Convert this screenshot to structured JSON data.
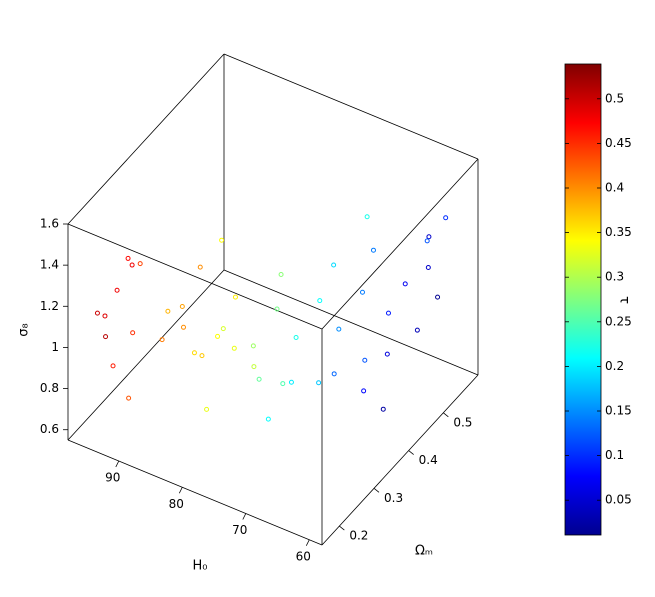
{
  "chart_data": {
    "type": "scatter3d",
    "colormap": "jet",
    "x_label": "H₀",
    "y_label": "Ωₘ",
    "z_label": "σ₈",
    "colorbar_label": "τ",
    "xlim": [
      58,
      98
    ],
    "xticks": [
      60,
      70,
      80,
      90
    ],
    "ylim": [
      0.15,
      0.6
    ],
    "yticks": [
      0.2,
      0.3,
      0.4,
      0.5
    ],
    "zlim": [
      0.55,
      1.6
    ],
    "zticks": [
      0.6,
      0.8,
      1,
      1.2,
      1.4,
      1.6
    ],
    "clim": [
      0.011,
      0.539
    ],
    "cticks": [
      0.05,
      0.1,
      0.15,
      0.2,
      0.25,
      0.3,
      0.35,
      0.4,
      0.45,
      0.5
    ],
    "x": [
      95,
      93,
      96,
      92,
      94,
      90,
      97,
      91,
      89,
      95,
      87,
      86,
      88,
      85,
      84,
      87,
      83,
      81,
      80,
      79,
      82,
      78,
      80,
      77,
      76,
      75,
      77,
      74,
      73,
      72,
      71,
      72,
      70,
      73,
      69,
      68,
      67,
      69,
      66,
      65,
      64,
      63,
      62,
      64,
      61,
      63,
      62,
      60,
      62,
      82,
      70,
      66
    ],
    "y": [
      0.18,
      0.2,
      0.22,
      0.17,
      0.25,
      0.19,
      0.24,
      0.23,
      0.16,
      0.28,
      0.22,
      0.26,
      0.3,
      0.2,
      0.28,
      0.33,
      0.24,
      0.27,
      0.3,
      0.25,
      0.34,
      0.32,
      0.22,
      0.3,
      0.35,
      0.28,
      0.38,
      0.33,
      0.35,
      0.4,
      0.3,
      0.44,
      0.36,
      0.27,
      0.4,
      0.45,
      0.35,
      0.5,
      0.42,
      0.47,
      0.5,
      0.43,
      0.53,
      0.38,
      0.48,
      0.55,
      0.4,
      0.52,
      0.58,
      0.3,
      0.5,
      0.6
    ],
    "z": [
      1.15,
      1.25,
      1.05,
      0.95,
      1.3,
      1.1,
      0.9,
      1.35,
      0.85,
      1.2,
      1.05,
      1.15,
      0.95,
      1.25,
      0.9,
      1.2,
      1.0,
      1.05,
      0.95,
      1.15,
      1.1,
      0.85,
      0.8,
      1.0,
      1.1,
      0.9,
      1.2,
      0.8,
      1.0,
      1.1,
      0.9,
      1.2,
      0.8,
      0.75,
      1.0,
      1.1,
      0.9,
      1.2,
      0.85,
      1.0,
      1.1,
      0.9,
      1.15,
      0.8,
      0.95,
      1.25,
      0.7,
      1.05,
      1.3,
      1.45,
      1.35,
      1.1
    ],
    "c": [
      0.5,
      0.48,
      0.49,
      0.46,
      0.47,
      0.45,
      0.51,
      0.44,
      0.43,
      0.48,
      0.41,
      0.39,
      0.4,
      0.38,
      0.37,
      0.4,
      0.36,
      0.34,
      0.33,
      0.32,
      0.35,
      0.31,
      0.33,
      0.29,
      0.27,
      0.26,
      0.28,
      0.25,
      0.22,
      0.21,
      0.2,
      0.19,
      0.18,
      0.21,
      0.15,
      0.14,
      0.13,
      0.14,
      0.12,
      0.09,
      0.07,
      0.06,
      0.05,
      0.08,
      0.04,
      0.05,
      0.03,
      0.02,
      0.1,
      0.34,
      0.22,
      0.12
    ]
  }
}
